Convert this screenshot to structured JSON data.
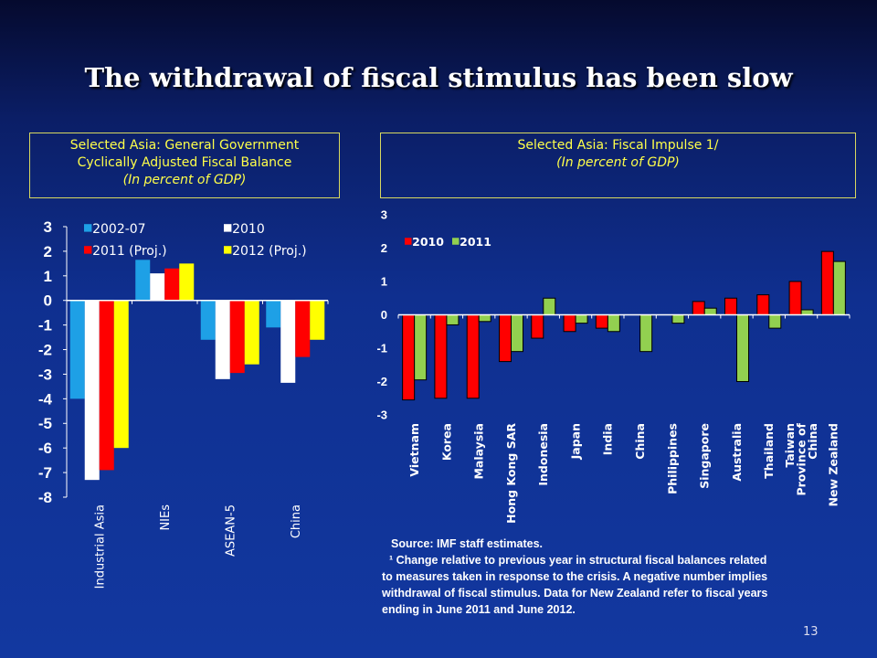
{
  "title": "The withdrawal of fiscal stimulus has been slow",
  "left_box": {
    "line1": "Selected Asia: General Government",
    "line2": "Cyclically Adjusted Fiscal Balance",
    "line3": "(In percent of GDP)"
  },
  "right_box": {
    "line1": "Selected Asia: Fiscal Impulse 1/",
    "line2": "(In percent of GDP)"
  },
  "source": {
    "line1": "Source: IMF staff estimates.",
    "line2": "¹ Change relative to previous year in structural fiscal balances related",
    "line3": "to measures taken in response to the crisis. A negative number implies",
    "line4": "withdrawal of fiscal stimulus. Data for New Zealand refer to fiscal years",
    "line5": "ending in June 2011 and June 2012."
  },
  "page_number": "13",
  "chart_data": [
    {
      "type": "bar",
      "categories": [
        "Industrial Asia",
        "NIEs",
        "ASEAN-5",
        "China"
      ],
      "series": [
        {
          "name": "2002-07",
          "color": "#1ea0e6",
          "values": [
            -4.0,
            1.65,
            -1.6,
            -1.1
          ]
        },
        {
          "name": "2010",
          "color": "#ffffff",
          "values": [
            -7.3,
            1.1,
            -3.2,
            -3.35
          ]
        },
        {
          "name": "2011 (Proj.)",
          "color": "#ff0000",
          "values": [
            -6.9,
            1.3,
            -2.95,
            -2.3
          ]
        },
        {
          "name": "2012 (Proj.)",
          "color": "#ffff00",
          "values": [
            -6.0,
            1.5,
            -2.6,
            -1.6
          ]
        }
      ],
      "ylim": [
        -8,
        3
      ],
      "yticks": [
        "3",
        "2",
        "1",
        "0",
        "-1",
        "-2",
        "-3",
        "-4",
        "-5",
        "-6",
        "-7",
        "-8"
      ],
      "legend": "top",
      "grid": false
    },
    {
      "type": "bar",
      "categories": [
        "Vietnam",
        "Korea",
        "Malaysia",
        "Hong Kong SAR",
        "Indonesia",
        "Japan",
        "India",
        "China",
        "Philippines",
        "Singapore",
        "Australia",
        "Thailand",
        "Taiwan Province of China",
        "New Zealand"
      ],
      "series": [
        {
          "name": "2010",
          "color": "#ff0000",
          "values": [
            -2.55,
            -2.5,
            -2.5,
            -1.4,
            -0.7,
            -0.5,
            -0.4,
            0,
            0,
            0.4,
            0.5,
            0.6,
            1.0,
            1.9
          ]
        },
        {
          "name": "2011",
          "color": "#92d050",
          "values": [
            -1.95,
            -0.3,
            -0.2,
            -1.1,
            0.5,
            -0.25,
            -0.5,
            -1.1,
            -0.25,
            0.2,
            -2.0,
            -0.4,
            0.15,
            1.6
          ]
        }
      ],
      "ylim": [
        -3,
        3
      ],
      "yticks": [
        "3",
        "2",
        "1",
        "0",
        "-1",
        "-2",
        "-3"
      ],
      "legend": "top-left",
      "grid": false
    }
  ]
}
